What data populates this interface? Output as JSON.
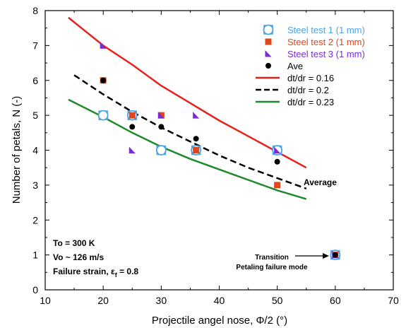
{
  "chart_data": {
    "type": "scatter",
    "xlabel": "Projectile angel nose, Φ/2 (°)",
    "ylabel": "Number of petals, N (-)",
    "xlim": [
      10,
      70
    ],
    "ylim": [
      0,
      8
    ],
    "x_ticks": [
      "10",
      "20",
      "30",
      "40",
      "50",
      "60",
      "70"
    ],
    "y_ticks": [
      "0",
      "1",
      "2",
      "3",
      "4",
      "5",
      "6",
      "7",
      "8"
    ],
    "grid": false,
    "legend_position": "top-right",
    "series": [
      {
        "name": "Steel test 1 (1 mm)",
        "marker": "open-circle-square",
        "color": "#4ba3e3",
        "points": [
          [
            20,
            5
          ],
          [
            25,
            5
          ],
          [
            30,
            4
          ],
          [
            36,
            4
          ],
          [
            50,
            4
          ],
          [
            60,
            1
          ]
        ]
      },
      {
        "name": "Steel test 2 (1 mm)",
        "marker": "square",
        "color": "#e0461a",
        "points": [
          [
            20,
            6
          ],
          [
            25,
            5
          ],
          [
            30,
            5
          ],
          [
            36,
            4
          ],
          [
            50,
            3
          ],
          [
            60,
            1
          ]
        ]
      },
      {
        "name": "Steel test 3 (1 mm)",
        "marker": "triangle",
        "color": "#7a2bd6",
        "points": [
          [
            20,
            7
          ],
          [
            25,
            4
          ],
          [
            30,
            5
          ],
          [
            36,
            5
          ],
          [
            50,
            4
          ],
          [
            60,
            1
          ]
        ]
      },
      {
        "name": "Ave",
        "marker": "circle",
        "color": "#000000",
        "points": [
          [
            20,
            6
          ],
          [
            25,
            4.67
          ],
          [
            30,
            4.67
          ],
          [
            36,
            4.33
          ],
          [
            50,
            3.67
          ],
          [
            60,
            1
          ]
        ]
      }
    ],
    "curves": [
      {
        "name": "dt/dr = 0.16",
        "style": "solid",
        "color": "#e8201c",
        "points": [
          [
            14,
            7.8
          ],
          [
            20,
            7.0
          ],
          [
            25,
            6.45
          ],
          [
            30,
            5.85
          ],
          [
            35,
            5.35
          ],
          [
            40,
            4.85
          ],
          [
            45,
            4.4
          ],
          [
            50,
            3.95
          ],
          [
            55,
            3.5
          ]
        ]
      },
      {
        "name": "dt/dr = 0.2",
        "style": "dashed",
        "color": "#000000",
        "points": [
          [
            15,
            6.15
          ],
          [
            20,
            5.6
          ],
          [
            25,
            5.1
          ],
          [
            30,
            4.65
          ],
          [
            35,
            4.25
          ],
          [
            40,
            3.85
          ],
          [
            45,
            3.5
          ],
          [
            50,
            3.2
          ],
          [
            55,
            2.9
          ]
        ]
      },
      {
        "name": "dt/dr = 0.23",
        "style": "solid",
        "color": "#1f8a2a",
        "points": [
          [
            14,
            5.45
          ],
          [
            20,
            4.95
          ],
          [
            25,
            4.5
          ],
          [
            30,
            4.1
          ],
          [
            35,
            3.75
          ],
          [
            40,
            3.45
          ],
          [
            45,
            3.15
          ],
          [
            50,
            2.85
          ],
          [
            55,
            2.6
          ]
        ]
      }
    ],
    "annotations": {
      "average_label": "Average",
      "conditions_line1": "To = 300 K",
      "conditions_line2": "Vo ~ 126 m/s",
      "conditions_line3_prefix": "Failure strain, ",
      "conditions_line3_symbol": "ε",
      "conditions_line3_sub": "f",
      "conditions_line3_suffix": " = 0.8",
      "transition_line1": "Transition",
      "transition_line2": "Petaling failure mode"
    }
  }
}
